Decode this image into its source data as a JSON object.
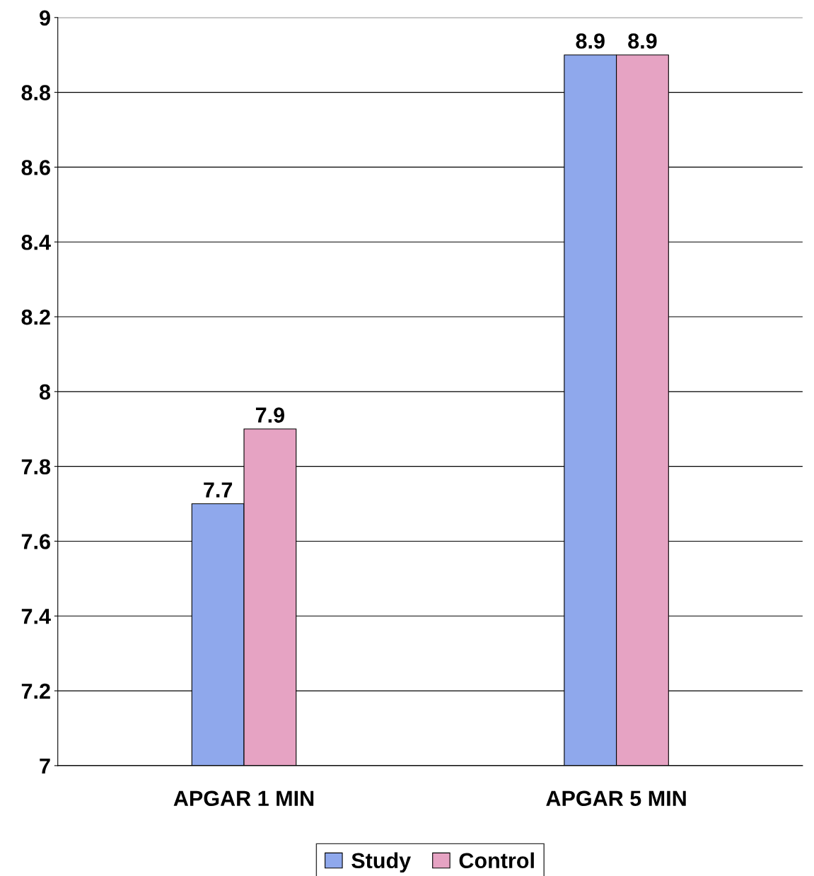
{
  "chart_data": {
    "type": "bar",
    "categories": [
      "APGAR 1 MIN",
      "APGAR 5 MIN"
    ],
    "series": [
      {
        "name": "Study",
        "color": "#8fa8ec",
        "values": [
          7.7,
          8.9
        ]
      },
      {
        "name": "Control",
        "color": "#e6a3c3",
        "values": [
          7.9,
          8.9
        ]
      }
    ],
    "ylim": [
      7,
      9
    ],
    "yticks": [
      7,
      7.2,
      7.4,
      7.6,
      7.8,
      8,
      8.2,
      8.4,
      8.6,
      8.8,
      9
    ],
    "grid": "y",
    "legend": "bottom",
    "data_labels": true
  }
}
